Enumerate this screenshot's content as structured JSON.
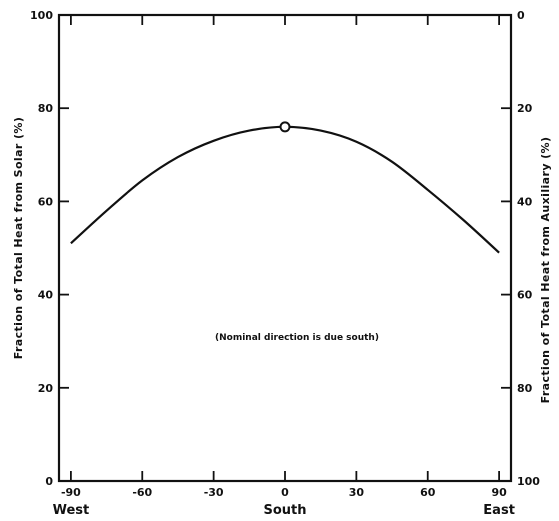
{
  "chart_data": {
    "type": "line",
    "title": "",
    "xlabel": "",
    "ylabel": "Fraction of Total Heat from Solar (%)",
    "y2label": "Fraction of Total Heat from Auxiliary (%)",
    "annotation": "(Nominal direction is due south)",
    "xlim": [
      -95,
      95
    ],
    "ylim": [
      0,
      100
    ],
    "y2lim": [
      100,
      0
    ],
    "xticks": [
      -90,
      -60,
      -30,
      0,
      30,
      60,
      90
    ],
    "xtick_labels": [
      "-90",
      "-60",
      "-30",
      "0",
      "30",
      "60",
      "90"
    ],
    "yticks": [
      0,
      20,
      40,
      60,
      80,
      100
    ],
    "ytick_labels": [
      "0",
      "20",
      "40",
      "60",
      "80",
      "100"
    ],
    "y2ticks": [
      100,
      80,
      60,
      40,
      20,
      0
    ],
    "y2tick_labels": [
      "100",
      "80",
      "60",
      "40",
      "20",
      "0"
    ],
    "direction_labels": [
      {
        "x": -90,
        "label": "West"
      },
      {
        "x": 0,
        "label": "South"
      },
      {
        "x": 90,
        "label": "East"
      }
    ],
    "grid": false,
    "series": [
      {
        "x": [
          -90,
          -75,
          -60,
          -45,
          -30,
          -15,
          0,
          15,
          30,
          45,
          60,
          75,
          90
        ],
        "y": [
          51,
          58,
          64.5,
          69.5,
          73,
          75.2,
          76,
          75.2,
          72.8,
          68.5,
          62.5,
          56,
          49
        ]
      }
    ],
    "marker": {
      "x": 0,
      "y": 76
    }
  }
}
